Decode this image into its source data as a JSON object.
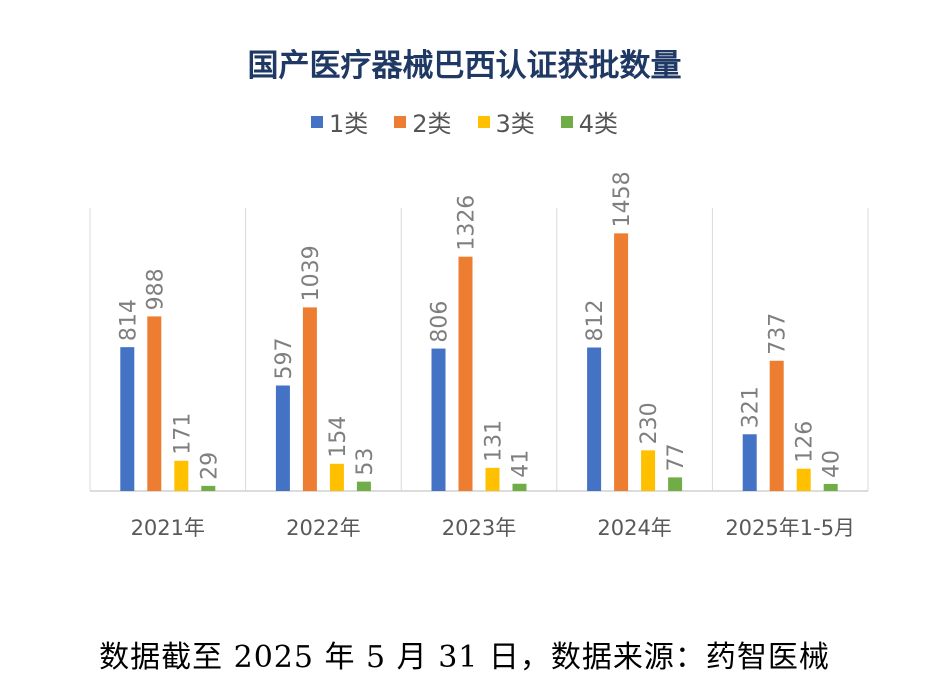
{
  "chart_data": {
    "type": "bar",
    "title": "国产医疗器械巴西认证获批数量",
    "categories": [
      "2021年",
      "2022年",
      "2023年",
      "2024年",
      "2025年1-5月"
    ],
    "series": [
      {
        "name": "1类",
        "color": "#4472c4",
        "values": [
          814,
          597,
          806,
          812,
          321
        ]
      },
      {
        "name": "2类",
        "color": "#ed7d31",
        "values": [
          988,
          1039,
          1326,
          1458,
          737
        ]
      },
      {
        "name": "3类",
        "color": "#ffc000",
        "values": [
          171,
          154,
          131,
          230,
          126
        ]
      },
      {
        "name": "4类",
        "color": "#70ad47",
        "values": [
          29,
          53,
          41,
          77,
          40
        ]
      }
    ],
    "ylim": [
      0,
      1460
    ],
    "grid": false,
    "legend_position": "top"
  },
  "footnote": "数据截至 2025 年 5 月 31 日，数据来源：药智医械"
}
